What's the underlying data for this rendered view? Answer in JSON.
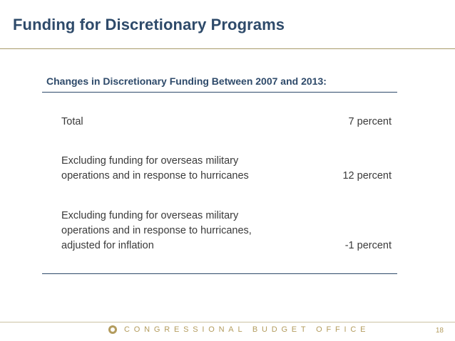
{
  "slide": {
    "title": "Funding for Discretionary Programs",
    "table_header": "Changes in Discretionary Funding Between 2007 and 2013:",
    "rows": [
      {
        "label_lines": [
          "Total"
        ],
        "value": "7 percent"
      },
      {
        "label_lines": [
          "Excluding funding for overseas military",
          "operations and in response to hurricanes"
        ],
        "value": "12 percent"
      },
      {
        "label_lines": [
          "Excluding funding for overseas military",
          "operations and in response to hurricanes,",
          "adjusted for inflation"
        ],
        "value": "-1 percent"
      }
    ]
  },
  "footer": {
    "organization": "CONGRESSIONAL BUDGET OFFICE",
    "page_number": "18"
  },
  "colors": {
    "title": "#2e4a6a",
    "accent": "#b39c5e",
    "text": "#3a3a3a"
  }
}
